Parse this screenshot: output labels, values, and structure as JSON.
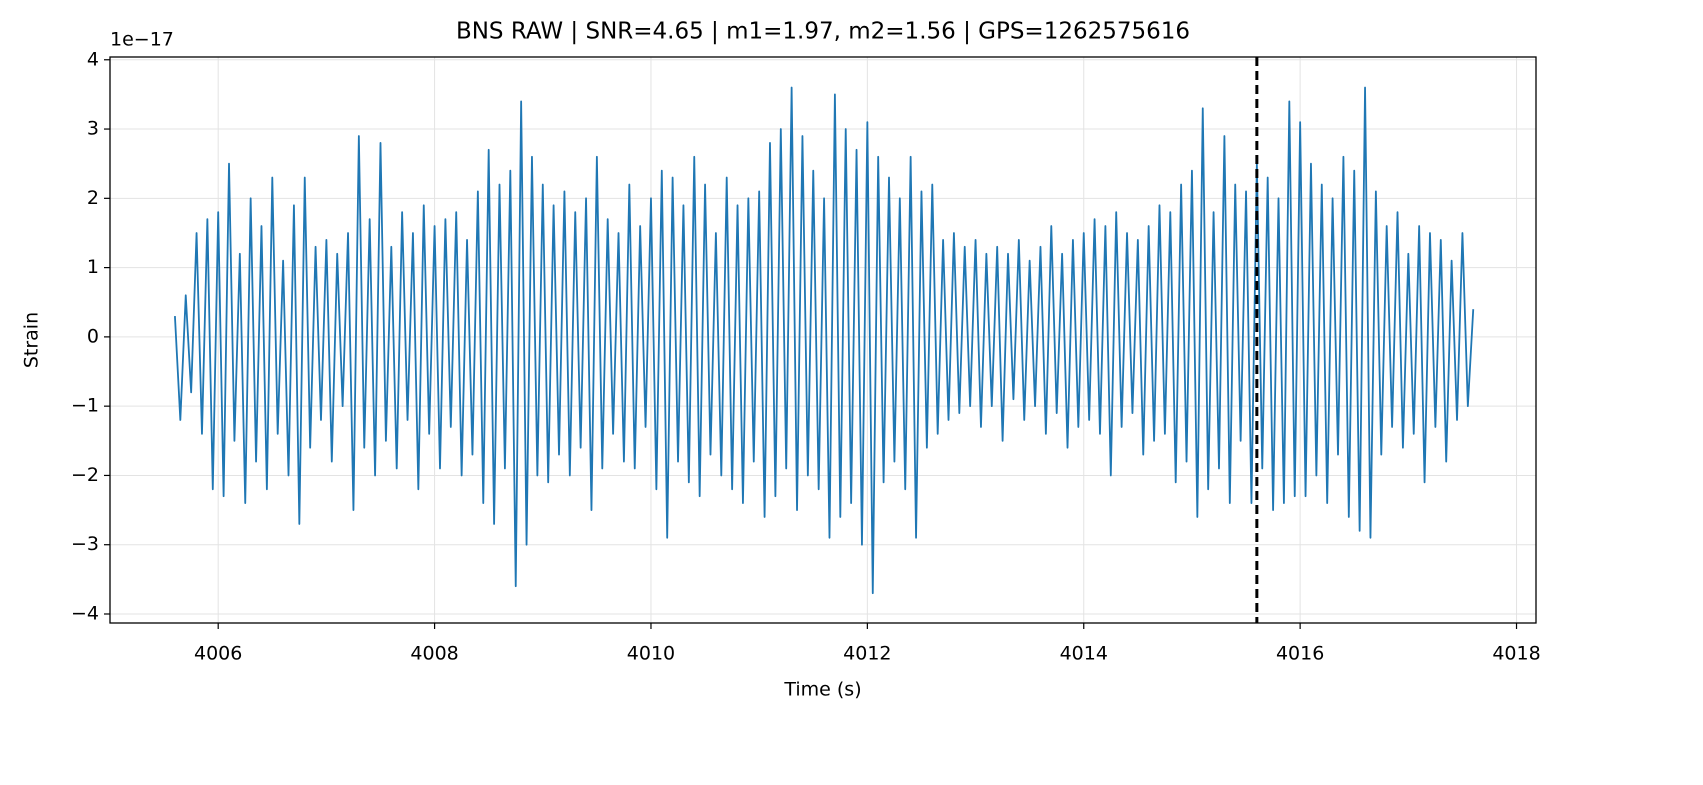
{
  "chart_data": {
    "type": "line",
    "title": "BNS RAW | SNR=4.65 | m1=1.97, m2=1.56 | GPS=1262575616",
    "x_label": "Time (s)",
    "y_label": "Strain",
    "y_offset_label": "1e−17",
    "color": "#1f77b4",
    "grid": true,
    "event_time": 4015.6,
    "event_line_color": "#000000",
    "xlim": [
      4005.0,
      4018.18
    ],
    "ylim": [
      -4.13,
      4.04
    ],
    "xticks": [
      4006,
      4008,
      4010,
      4012,
      4014,
      4016,
      4018
    ],
    "yticks": [
      {
        "value": -4,
        "label": "−4"
      },
      {
        "value": -3,
        "label": "−3"
      },
      {
        "value": -2,
        "label": "−2"
      },
      {
        "value": -1,
        "label": "−1"
      },
      0,
      1,
      2,
      3,
      4
    ],
    "x": [
      4005.6,
      4005.65,
      4005.7,
      4005.75,
      4005.8,
      4005.85,
      4005.9,
      4005.95,
      4006,
      4006.05,
      4006.1,
      4006.15,
      4006.2,
      4006.25,
      4006.3,
      4006.35,
      4006.4,
      4006.45,
      4006.5,
      4006.55,
      4006.6,
      4006.65,
      4006.7,
      4006.75,
      4006.8,
      4006.85,
      4006.9,
      4006.95,
      4007,
      4007.05,
      4007.1,
      4007.15,
      4007.2,
      4007.25,
      4007.3,
      4007.35,
      4007.4,
      4007.45,
      4007.5,
      4007.55,
      4007.6,
      4007.65,
      4007.7,
      4007.75,
      4007.8,
      4007.85,
      4007.9,
      4007.95,
      4008,
      4008.05,
      4008.1,
      4008.15,
      4008.2,
      4008.25,
      4008.3,
      4008.35,
      4008.4,
      4008.45,
      4008.5,
      4008.55,
      4008.6,
      4008.65,
      4008.7,
      4008.75,
      4008.8,
      4008.85,
      4008.9,
      4008.95,
      4009,
      4009.05,
      4009.1,
      4009.15,
      4009.2,
      4009.25,
      4009.3,
      4009.35,
      4009.4,
      4009.45,
      4009.5,
      4009.55,
      4009.6,
      4009.65,
      4009.7,
      4009.75,
      4009.8,
      4009.85,
      4009.9,
      4009.95,
      4010,
      4010.05,
      4010.1,
      4010.15,
      4010.2,
      4010.25,
      4010.3,
      4010.35,
      4010.4,
      4010.45,
      4010.5,
      4010.55,
      4010.6,
      4010.65,
      4010.7,
      4010.75,
      4010.8,
      4010.85,
      4010.9,
      4010.95,
      4011,
      4011.05,
      4011.1,
      4011.15,
      4011.2,
      4011.25,
      4011.3,
      4011.35,
      4011.4,
      4011.45,
      4011.5,
      4011.55,
      4011.6,
      4011.65,
      4011.7,
      4011.75,
      4011.8,
      4011.85,
      4011.9,
      4011.95,
      4012,
      4012.05,
      4012.1,
      4012.15,
      4012.2,
      4012.25,
      4012.3,
      4012.35,
      4012.4,
      4012.45,
      4012.5,
      4012.55,
      4012.6,
      4012.65,
      4012.7,
      4012.75,
      4012.8,
      4012.85,
      4012.9,
      4012.95,
      4013,
      4013.05,
      4013.1,
      4013.15,
      4013.2,
      4013.25,
      4013.3,
      4013.35,
      4013.4,
      4013.45,
      4013.5,
      4013.55,
      4013.6,
      4013.65,
      4013.7,
      4013.75,
      4013.8,
      4013.85,
      4013.9,
      4013.95,
      4014,
      4014.05,
      4014.1,
      4014.15,
      4014.2,
      4014.25,
      4014.3,
      4014.35,
      4014.4,
      4014.45,
      4014.5,
      4014.55,
      4014.6,
      4014.65,
      4014.7,
      4014.75,
      4014.8,
      4014.85,
      4014.9,
      4014.95,
      4015,
      4015.05,
      4015.1,
      4015.15,
      4015.2,
      4015.25,
      4015.3,
      4015.35,
      4015.4,
      4015.45,
      4015.5,
      4015.55,
      4015.6,
      4015.65,
      4015.7,
      4015.75,
      4015.8,
      4015.85,
      4015.9,
      4015.95,
      4016,
      4016.05,
      4016.1,
      4016.15,
      4016.2,
      4016.25,
      4016.3,
      4016.35,
      4016.4,
      4016.45,
      4016.5,
      4016.55,
      4016.6,
      4016.65,
      4016.7,
      4016.75,
      4016.8,
      4016.85,
      4016.9,
      4016.95,
      4017,
      4017.05,
      4017.1,
      4017.15,
      4017.2,
      4017.25,
      4017.3,
      4017.35,
      4017.4,
      4017.45,
      4017.5,
      4017.55,
      4017.6
    ],
    "values": [
      0.3,
      -1.2,
      0.6,
      -0.8,
      1.5,
      -1.4,
      1.7,
      -2.2,
      1.8,
      -2.3,
      2.5,
      -1.5,
      1.2,
      -2.4,
      2.0,
      -1.8,
      1.6,
      -2.2,
      2.3,
      -1.4,
      1.1,
      -2.0,
      1.9,
      -2.7,
      2.3,
      -1.6,
      1.3,
      -1.2,
      1.4,
      -1.8,
      1.2,
      -1.0,
      1.5,
      -2.5,
      2.9,
      -1.6,
      1.7,
      -2.0,
      2.8,
      -1.5,
      1.3,
      -1.9,
      1.8,
      -1.2,
      1.5,
      -2.2,
      1.9,
      -1.4,
      1.6,
      -1.9,
      1.7,
      -1.3,
      1.8,
      -2.0,
      1.4,
      -1.7,
      2.1,
      -2.4,
      2.7,
      -2.7,
      2.2,
      -1.9,
      2.4,
      -3.6,
      3.4,
      -3.0,
      2.6,
      -2.0,
      2.2,
      -2.1,
      1.9,
      -1.7,
      2.1,
      -2.0,
      1.8,
      -1.6,
      2.0,
      -2.5,
      2.6,
      -1.9,
      1.7,
      -1.4,
      1.5,
      -1.8,
      2.2,
      -1.9,
      1.6,
      -1.3,
      2.0,
      -2.2,
      2.4,
      -2.9,
      2.3,
      -1.8,
      1.9,
      -2.1,
      2.6,
      -2.3,
      2.2,
      -1.7,
      1.5,
      -2.0,
      2.3,
      -2.2,
      1.9,
      -2.4,
      2.0,
      -1.8,
      2.1,
      -2.6,
      2.8,
      -2.3,
      3.0,
      -1.9,
      3.6,
      -2.5,
      2.9,
      -2.0,
      2.4,
      -2.2,
      2.0,
      -2.9,
      3.5,
      -2.6,
      3.0,
      -2.4,
      2.7,
      -3.0,
      3.1,
      -3.7,
      2.6,
      -2.1,
      2.3,
      -1.8,
      2.0,
      -2.2,
      2.6,
      -2.9,
      2.1,
      -1.6,
      2.2,
      -1.4,
      1.4,
      -1.2,
      1.5,
      -1.1,
      1.3,
      -1.0,
      1.4,
      -1.3,
      1.2,
      -1.0,
      1.3,
      -1.5,
      1.2,
      -0.9,
      1.4,
      -1.2,
      1.1,
      -1.0,
      1.3,
      -1.4,
      1.6,
      -1.1,
      1.2,
      -1.6,
      1.4,
      -1.3,
      1.5,
      -1.2,
      1.7,
      -1.4,
      1.6,
      -2.0,
      1.8,
      -1.3,
      1.5,
      -1.1,
      1.4,
      -1.7,
      1.6,
      -1.5,
      1.9,
      -1.4,
      1.8,
      -2.1,
      2.2,
      -1.8,
      2.4,
      -2.6,
      3.3,
      -2.2,
      1.8,
      -1.9,
      2.9,
      -2.4,
      2.2,
      -1.5,
      2.1,
      -2.4,
      2.5,
      -1.9,
      2.3,
      -2.5,
      2.0,
      -2.4,
      3.4,
      -2.3,
      3.1,
      -2.3,
      2.5,
      -2.0,
      2.2,
      -2.4,
      2.0,
      -1.7,
      2.6,
      -2.6,
      2.4,
      -2.8,
      3.6,
      -2.9,
      2.1,
      -1.7,
      1.6,
      -1.3,
      1.8,
      -1.6,
      1.2,
      -1.4,
      1.6,
      -2.1,
      1.5,
      -1.3,
      1.4,
      -1.8,
      1.1,
      -1.2,
      1.5,
      -1.0,
      0.4
    ]
  }
}
